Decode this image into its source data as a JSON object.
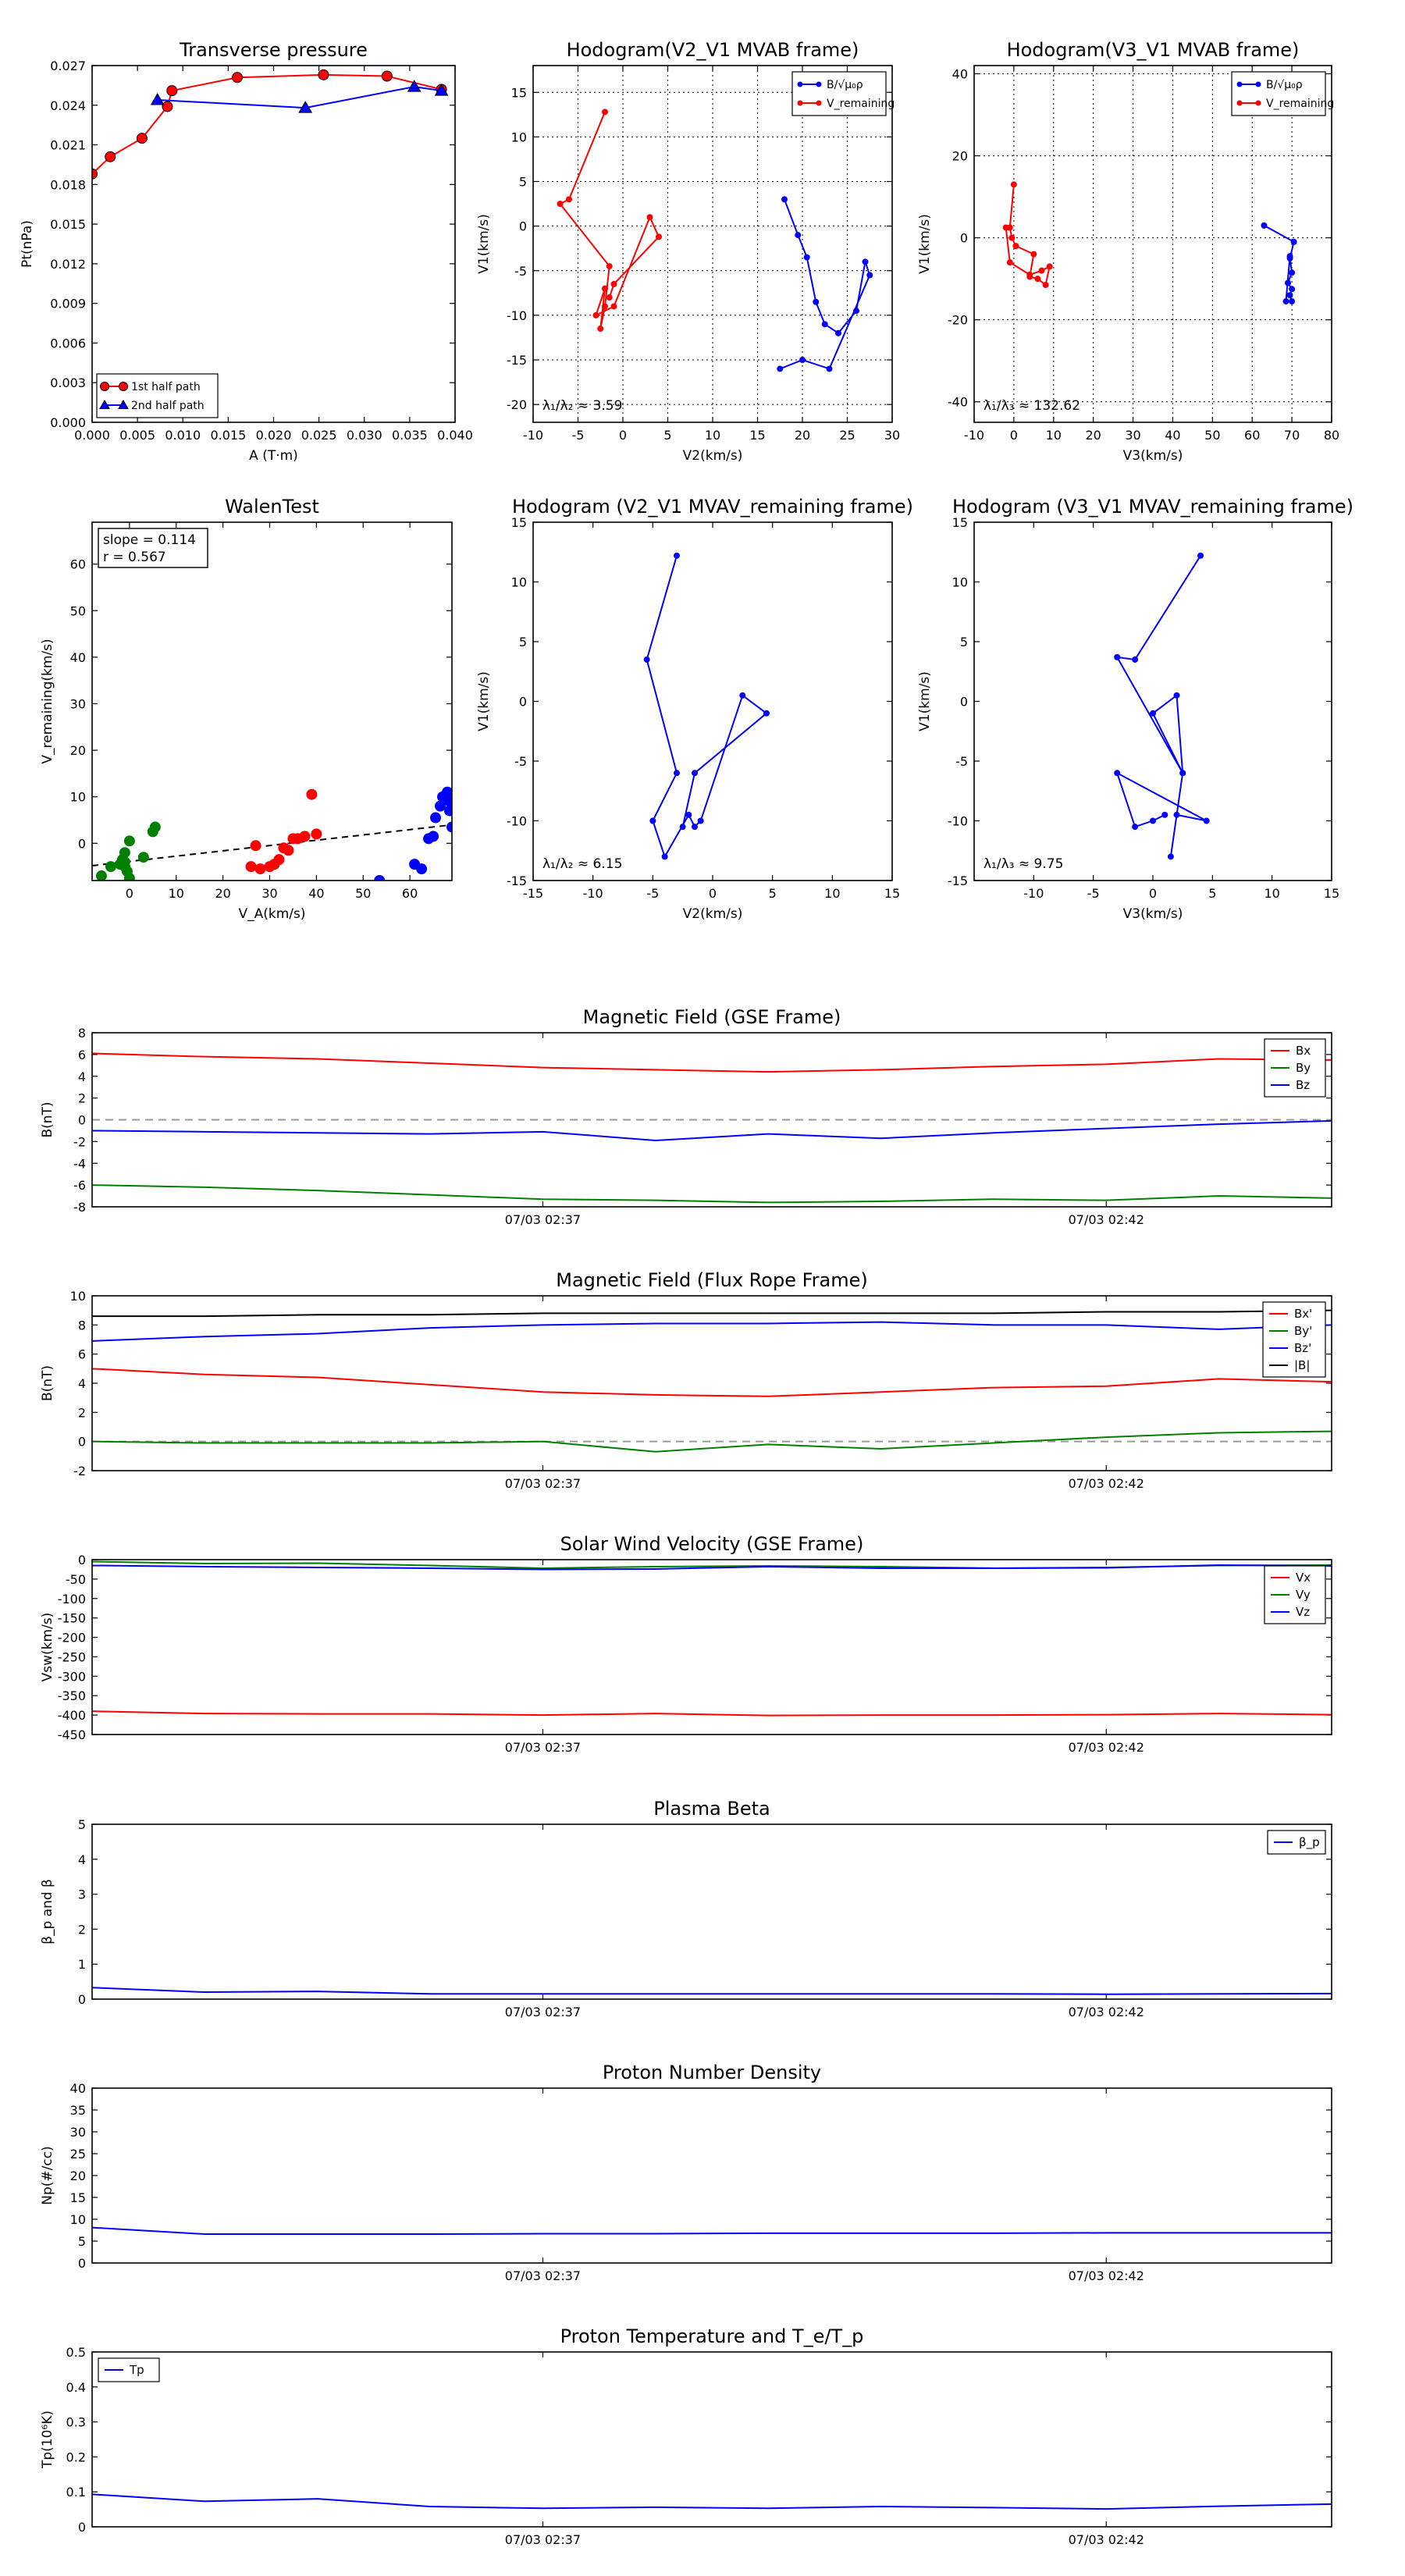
{
  "chart_data": [
    {
      "id": "tp",
      "type": "scatter",
      "title": "Transverse pressure",
      "xlabel": "A (T·m)",
      "ylabel": "Pt(nPa)",
      "xlim": [
        0.0,
        0.04
      ],
      "ylim": [
        0.0,
        0.027
      ],
      "xticks": [
        0.0,
        0.005,
        0.01,
        0.015,
        0.02,
        0.025,
        0.03,
        0.035,
        0.04
      ],
      "yticks": [
        0.0,
        0.003,
        0.006,
        0.009,
        0.012,
        0.015,
        0.018,
        0.021,
        0.024,
        0.027
      ],
      "xtick_labels": [
        "0.000",
        "0.005",
        "0.010",
        "0.015",
        "0.020",
        "0.025",
        "0.030",
        "0.035",
        "0.040"
      ],
      "ytick_labels": [
        "0.000",
        "0.003",
        "0.006",
        "0.009",
        "0.012",
        "0.015",
        "0.018",
        "0.021",
        "0.024",
        "0.027"
      ],
      "grid": false,
      "legend_placement": "lower-left",
      "series": [
        {
          "name": "1st half path",
          "color": "#ff0000",
          "marker": "circle",
          "x": [
            0.0,
            0.002,
            0.0055,
            0.0083,
            0.0088,
            0.016,
            0.0255,
            0.0325,
            0.0385
          ],
          "y": [
            0.0188,
            0.0201,
            0.0215,
            0.0239,
            0.0251,
            0.0261,
            0.0263,
            0.0262,
            0.0252
          ]
        },
        {
          "name": "2nd half path",
          "color": "#0000ff",
          "marker": "triangle",
          "x": [
            0.0385,
            0.0355,
            0.0235,
            0.0072
          ],
          "y": [
            0.0251,
            0.0254,
            0.0238,
            0.0244
          ]
        }
      ]
    },
    {
      "id": "h1",
      "type": "line",
      "title": "Hodogram(V2_V1 MVAB frame)",
      "xlabel": "V2(km/s)",
      "ylabel": "V1(km/s)",
      "xlim": [
        -10,
        30
      ],
      "ylim": [
        -22,
        18
      ],
      "xticks": [
        -10,
        -5,
        0,
        5,
        10,
        15,
        20,
        25,
        30
      ],
      "yticks": [
        -20,
        -15,
        -10,
        -5,
        0,
        5,
        10,
        15
      ],
      "grid": true,
      "legend_placement": "upper-right",
      "annotation": "λ₁/λ₂ ≈ 3.59",
      "series": [
        {
          "name": "B/√μ₀ρ",
          "color": "#0000ff",
          "x": [
            18.0,
            19.5,
            20.5,
            21.5,
            22.5,
            24.0,
            26.0,
            27.0,
            27.5,
            23.0,
            20.0,
            17.5
          ],
          "y": [
            3.0,
            -1.0,
            -3.5,
            -8.5,
            -11.0,
            -12.0,
            -9.5,
            -4.0,
            -5.5,
            -16.0,
            -15.0,
            -16.0
          ]
        },
        {
          "name": "V_remaining",
          "color": "#ff0000",
          "x": [
            -2.0,
            -6.0,
            -7.0,
            -1.5,
            -2.0,
            -2.5,
            -2.0,
            -3.0,
            -1.0,
            3.0,
            4.0,
            -1.0,
            -1.5
          ],
          "y": [
            12.8,
            3.0,
            2.5,
            -4.5,
            -9.0,
            -11.5,
            -7.0,
            -10.0,
            -9.0,
            1.0,
            -1.2,
            -6.5,
            -8.0
          ]
        }
      ]
    },
    {
      "id": "h2",
      "type": "line",
      "title": "Hodogram(V3_V1 MVAB frame)",
      "xlabel": "V3(km/s)",
      "ylabel": "V1(km/s)",
      "xlim": [
        -10,
        80
      ],
      "ylim": [
        -45,
        42
      ],
      "xticks": [
        -10,
        0,
        10,
        20,
        30,
        40,
        50,
        60,
        70,
        80
      ],
      "yticks": [
        -40,
        -20,
        0,
        20,
        40
      ],
      "grid": true,
      "legend_placement": "upper-right",
      "annotation": "λ₁/λ₃ ≈ 132.62",
      "series": [
        {
          "name": "B/√μ₀ρ",
          "color": "#0000ff",
          "x": [
            63.0,
            70.5,
            69.5,
            70.0,
            69.0,
            70.0,
            69.5,
            70.0,
            68.5,
            69.5
          ],
          "y": [
            3.0,
            -1.0,
            -5.0,
            -8.5,
            -11.0,
            -12.5,
            -14.0,
            -15.5,
            -15.5,
            -4.5
          ]
        },
        {
          "name": "V_remaining",
          "color": "#ff0000",
          "x": [
            0.0,
            -1.0,
            -0.5,
            0.5,
            5.0,
            4.0,
            6.0,
            8.0,
            9.0,
            7.0,
            4.0,
            -1.0,
            -2.0
          ],
          "y": [
            13.0,
            2.5,
            0.0,
            -2.0,
            -4.0,
            -9.5,
            -10.0,
            -11.5,
            -7.0,
            -8.0,
            -9.0,
            -6.0,
            2.5
          ]
        }
      ]
    },
    {
      "id": "walen",
      "type": "scatter",
      "title": "WalenTest",
      "xlabel": "V_A(km/s)",
      "ylabel": "V_remaining(km/s)",
      "xlim": [
        -8,
        69
      ],
      "ylim": [
        -8,
        69
      ],
      "xticks": [
        0,
        10,
        20,
        30,
        40,
        50,
        60
      ],
      "yticks": [
        0,
        10,
        20,
        30,
        40,
        50,
        60
      ],
      "grid": false,
      "annotation_lines": [
        "slope = 0.114",
        "r = 0.567"
      ],
      "fit_line": {
        "slope": 0.114,
        "intercept": -3.9,
        "color": "#000000",
        "style": "dashed"
      },
      "series": [
        {
          "name": "green",
          "color": "#008000",
          "x": [
            -6.0,
            -4.0,
            -2.0,
            -1.5,
            -1.0,
            -1.0,
            -1.0,
            -0.5,
            0.0,
            0.0,
            3.0,
            5.0,
            5.5
          ],
          "y": [
            -7.0,
            -5.0,
            -4.5,
            -3.5,
            -5.0,
            -4.0,
            -2.0,
            -6.0,
            0.5,
            -7.5,
            -3.0,
            2.5,
            3.5
          ]
        },
        {
          "name": "red",
          "color": "#ff0000",
          "x": [
            26.0,
            27.0,
            28.0,
            30.0,
            31.0,
            32.0,
            33.0,
            34.0,
            35.0,
            36.0,
            37.5,
            39.0,
            40.0
          ],
          "y": [
            -5.0,
            -0.5,
            -5.5,
            -5.0,
            -4.5,
            -3.5,
            -1.0,
            -1.5,
            1.0,
            1.0,
            1.5,
            10.5,
            2.0
          ]
        },
        {
          "name": "blue",
          "color": "#0000ff",
          "x": [
            53.5,
            61.0,
            62.5,
            64.0,
            65.0,
            65.5,
            66.5,
            67.0,
            68.0,
            68.5,
            68.5,
            69.0
          ],
          "y": [
            -8.0,
            -4.5,
            -5.5,
            1.0,
            1.5,
            5.5,
            8.0,
            10.0,
            11.0,
            7.0,
            9.0,
            3.5
          ]
        }
      ]
    },
    {
      "id": "h3",
      "type": "line",
      "title": "Hodogram (V2_V1 MVAV_remaining frame)",
      "xlabel": "V2(km/s)",
      "ylabel": "V1(km/s)",
      "xlim": [
        -15,
        15
      ],
      "ylim": [
        -15,
        15
      ],
      "xticks": [
        -15,
        -10,
        -5,
        0,
        5,
        10,
        15
      ],
      "yticks": [
        -15,
        -10,
        -5,
        0,
        5,
        10,
        15
      ],
      "grid": false,
      "annotation": "λ₁/λ₂ ≈ 6.15",
      "series": [
        {
          "name": "",
          "color": "#0000ff",
          "x": [
            -3.0,
            -5.5,
            -3.0,
            -5.0,
            -4.0,
            -2.0,
            -1.5,
            -1.0,
            2.5,
            4.5,
            -1.5,
            -2.5
          ],
          "y": [
            12.2,
            3.5,
            -6.0,
            -10.0,
            -13.0,
            -9.5,
            -10.5,
            -10.0,
            0.5,
            -1.0,
            -6.0,
            -10.5
          ]
        }
      ]
    },
    {
      "id": "h4",
      "type": "line",
      "title": "Hodogram (V3_V1 MVAV_remaining frame)",
      "xlabel": "V3(km/s)",
      "ylabel": "V1(km/s)",
      "xlim": [
        -15,
        15
      ],
      "ylim": [
        -15,
        15
      ],
      "xticks": [
        -10,
        -5,
        0,
        5,
        10,
        15
      ],
      "yticks": [
        -15,
        -10,
        -5,
        0,
        5,
        10,
        15
      ],
      "grid": false,
      "annotation": "λ₁/λ₃ ≈ 9.75",
      "series": [
        {
          "name": "",
          "color": "#0000ff",
          "x": [
            4.0,
            -1.5,
            -3.0,
            2.5,
            0.0,
            2.0,
            2.5,
            1.5,
            2.0,
            4.5,
            -3.0,
            -1.5,
            0.0,
            1.0
          ],
          "y": [
            12.2,
            3.5,
            3.7,
            -6.0,
            -1.0,
            0.5,
            -6.0,
            -13.0,
            -9.5,
            -10.0,
            -6.0,
            -10.5,
            -10.0,
            -9.5
          ]
        }
      ]
    },
    {
      "id": "ts1",
      "type": "line",
      "title": "Magnetic Field (GSE Frame)",
      "ylabel": "B(nT)",
      "ylim": [
        -8,
        8
      ],
      "yticks": [
        -8,
        -6,
        -4,
        -2,
        0,
        2,
        4,
        6,
        8
      ],
      "xticks": [
        4,
        9
      ],
      "xtick_labels": [
        "07/03 02:37",
        "07/03 02:42"
      ],
      "xlim": [
        0,
        11
      ],
      "zero_line": true,
      "grid": false,
      "legend_placement": "upper-right",
      "x": [
        0,
        1,
        2,
        3,
        4,
        5,
        6,
        7,
        8,
        9,
        10,
        11
      ],
      "series": [
        {
          "name": "Bx",
          "color": "#ff0000",
          "values": [
            6.1,
            5.8,
            5.6,
            5.2,
            4.8,
            4.6,
            4.4,
            4.6,
            4.9,
            5.1,
            5.6,
            5.5
          ]
        },
        {
          "name": "By",
          "color": "#008000",
          "values": [
            -6.0,
            -6.2,
            -6.5,
            -6.9,
            -7.3,
            -7.4,
            -7.6,
            -7.5,
            -7.3,
            -7.4,
            -7.0,
            -7.2
          ]
        },
        {
          "name": "Bz",
          "color": "#0000ff",
          "values": [
            -1.0,
            -1.1,
            -1.2,
            -1.3,
            -1.1,
            -1.9,
            -1.3,
            -1.7,
            -1.2,
            -0.8,
            -0.4,
            -0.1
          ]
        }
      ]
    },
    {
      "id": "ts2",
      "type": "line",
      "title": "Magnetic Field (Flux Rope Frame)",
      "ylabel": "B(nT)",
      "ylim": [
        -2,
        10
      ],
      "yticks": [
        -2,
        0,
        2,
        4,
        6,
        8,
        10
      ],
      "xticks": [
        4,
        9
      ],
      "xtick_labels": [
        "07/03 02:37",
        "07/03 02:42"
      ],
      "xlim": [
        0,
        11
      ],
      "zero_line": true,
      "grid": false,
      "legend_placement": "upper-right",
      "x": [
        0,
        1,
        2,
        3,
        4,
        5,
        6,
        7,
        8,
        9,
        10,
        11
      ],
      "series": [
        {
          "name": "Bx'",
          "color": "#ff0000",
          "values": [
            5.0,
            4.6,
            4.4,
            3.9,
            3.4,
            3.2,
            3.1,
            3.4,
            3.7,
            3.8,
            4.3,
            4.1
          ]
        },
        {
          "name": "By'",
          "color": "#008000",
          "values": [
            0.0,
            -0.1,
            -0.1,
            -0.1,
            0.0,
            -0.7,
            -0.2,
            -0.5,
            -0.1,
            0.3,
            0.6,
            0.7
          ]
        },
        {
          "name": "Bz'",
          "color": "#0000ff",
          "values": [
            6.9,
            7.2,
            7.4,
            7.8,
            8.0,
            8.1,
            8.1,
            8.2,
            8.0,
            8.0,
            7.7,
            8.0
          ]
        },
        {
          "name": "|B|",
          "color": "#000000",
          "values": [
            8.6,
            8.6,
            8.7,
            8.7,
            8.8,
            8.8,
            8.8,
            8.8,
            8.8,
            8.9,
            8.9,
            9.0
          ]
        }
      ]
    },
    {
      "id": "ts3",
      "type": "line",
      "title": "Solar Wind Velocity (GSE Frame)",
      "ylabel": "Vsw(km/s)",
      "ylim": [
        -450,
        0
      ],
      "yticks": [
        -450,
        -400,
        -350,
        -300,
        -250,
        -200,
        -150,
        -100,
        -50,
        0
      ],
      "xticks": [
        4,
        9
      ],
      "xtick_labels": [
        "07/03 02:37",
        "07/03 02:42"
      ],
      "xlim": [
        0,
        11
      ],
      "grid": false,
      "legend_placement": "upper-right",
      "x": [
        0,
        1,
        2,
        3,
        4,
        5,
        6,
        7,
        8,
        9,
        10,
        11
      ],
      "series": [
        {
          "name": "Vx",
          "color": "#ff0000",
          "values": [
            -390,
            -396,
            -397,
            -397,
            -400,
            -396,
            -401,
            -400,
            -400,
            -399,
            -396,
            -399
          ]
        },
        {
          "name": "Vy",
          "color": "#008000",
          "values": [
            -5,
            -10,
            -9,
            -15,
            -22,
            -18,
            -16,
            -18,
            -22,
            -20,
            -15,
            -14
          ]
        },
        {
          "name": "Vz",
          "color": "#0000ff",
          "values": [
            -15,
            -18,
            -20,
            -22,
            -25,
            -24,
            -18,
            -22,
            -22,
            -21,
            -14,
            -16
          ]
        }
      ]
    },
    {
      "id": "ts4",
      "type": "line",
      "title": "Plasma Beta",
      "ylabel": "β_p and β",
      "ylim": [
        0,
        5
      ],
      "yticks": [
        0,
        1,
        2,
        3,
        4,
        5
      ],
      "xticks": [
        4,
        9
      ],
      "xtick_labels": [
        "07/03 02:37",
        "07/03 02:42"
      ],
      "xlim": [
        0,
        11
      ],
      "grid": false,
      "legend_placement": "upper-right",
      "x": [
        0,
        1,
        2,
        3,
        4,
        5,
        6,
        7,
        8,
        9,
        10,
        11
      ],
      "series": [
        {
          "name": "β_p",
          "color": "#0000ff",
          "values": [
            0.33,
            0.2,
            0.22,
            0.15,
            0.15,
            0.15,
            0.15,
            0.15,
            0.15,
            0.14,
            0.15,
            0.16
          ]
        }
      ]
    },
    {
      "id": "ts5",
      "type": "line",
      "title": "Proton Number Density",
      "ylabel": "Np(#/cc)",
      "ylim": [
        0,
        40
      ],
      "yticks": [
        0,
        5,
        10,
        15,
        20,
        25,
        30,
        35,
        40
      ],
      "xticks": [
        4,
        9
      ],
      "xtick_labels": [
        "07/03 02:37",
        "07/03 02:42"
      ],
      "xlim": [
        0,
        11
      ],
      "grid": false,
      "x": [
        0,
        1,
        2,
        3,
        4,
        5,
        6,
        7,
        8,
        9,
        10,
        11
      ],
      "series": [
        {
          "name": "",
          "color": "#0000ff",
          "values": [
            8.1,
            6.6,
            6.6,
            6.6,
            6.7,
            6.7,
            6.8,
            6.8,
            6.8,
            6.9,
            6.9,
            6.9
          ]
        }
      ]
    },
    {
      "id": "ts6",
      "type": "line",
      "title": "Proton Temperature and T_e/T_p",
      "ylabel": "Tp(10⁶K)",
      "ylim": [
        0,
        0.5
      ],
      "yticks": [
        0.0,
        0.1,
        0.2,
        0.3,
        0.4,
        0.5
      ],
      "xticks": [
        4,
        9
      ],
      "xtick_labels": [
        "07/03 02:37",
        "07/03 02:42"
      ],
      "xlim": [
        0,
        11
      ],
      "grid": false,
      "legend_placement": "upper-left",
      "x": [
        0,
        1,
        2,
        3,
        4,
        5,
        6,
        7,
        8,
        9,
        10,
        11
      ],
      "series": [
        {
          "name": "Tp",
          "color": "#0000ff",
          "values": [
            0.093,
            0.073,
            0.08,
            0.058,
            0.053,
            0.056,
            0.053,
            0.058,
            0.055,
            0.051,
            0.059,
            0.065
          ]
        }
      ]
    }
  ]
}
